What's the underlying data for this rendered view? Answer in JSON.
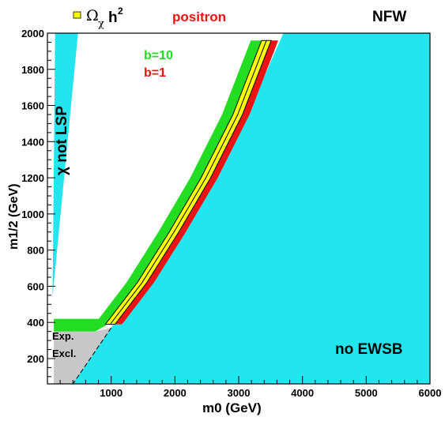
{
  "chart_data": {
    "type": "contour",
    "title": "NFW",
    "legend_symbol": "Ω",
    "legend_subscript": "χ",
    "legend_h": "h",
    "legend_sup": "2",
    "subtitle": "positron",
    "xlabel": "m0 (GeV)",
    "ylabel": "m1/2 (GeV)",
    "xlim": [
      0,
      6000
    ],
    "ylim": [
      60,
      2000
    ],
    "x_ticks": [
      1000,
      2000,
      3000,
      4000,
      5000,
      6000
    ],
    "y_ticks": [
      200,
      400,
      600,
      800,
      1000,
      1200,
      1400,
      1600,
      1800,
      2000
    ],
    "boost_labels": [
      {
        "text": "b=10",
        "color": "#22dd22"
      },
      {
        "text": "b=1",
        "color": "#ee1111"
      }
    ],
    "region_labels": {
      "not_lsp": "χ not LSP",
      "exp_excl_line1": "Exp.",
      "exp_excl_line2": "Excl.",
      "no_ewsb": "no EWSB"
    },
    "colors": {
      "excluded_region": "#22e5ee",
      "experimental_exclusion": "#c8c8c8",
      "relic_density_band": "#ffff00",
      "boost_10": "#22dd22",
      "boost_1": "#ee1111",
      "title_text": "#000000",
      "subtitle_text": "#ee1111"
    },
    "regions": {
      "not_lsp_boundary": [
        [
          120,
          2000
        ],
        [
          480,
          2000
        ],
        [
          80,
          540
        ]
      ],
      "no_ewsb_boundary": [
        [
          3700,
          2000
        ],
        [
          6000,
          2000
        ],
        [
          6000,
          60
        ],
        [
          400,
          60
        ],
        [
          1000,
          370
        ],
        [
          1800,
          800
        ],
        [
          2600,
          1250
        ],
        [
          3200,
          1600
        ]
      ],
      "relic_band_center": [
        [
          1000,
          390
        ],
        [
          1500,
          620
        ],
        [
          2000,
          900
        ],
        [
          2500,
          1200
        ],
        [
          3000,
          1550
        ],
        [
          3450,
          1960
        ]
      ],
      "exp_excl_boundary": [
        [
          100,
          350
        ],
        [
          750,
          350
        ],
        [
          1000,
          370
        ],
        [
          400,
          60
        ],
        [
          100,
          60
        ]
      ]
    }
  }
}
